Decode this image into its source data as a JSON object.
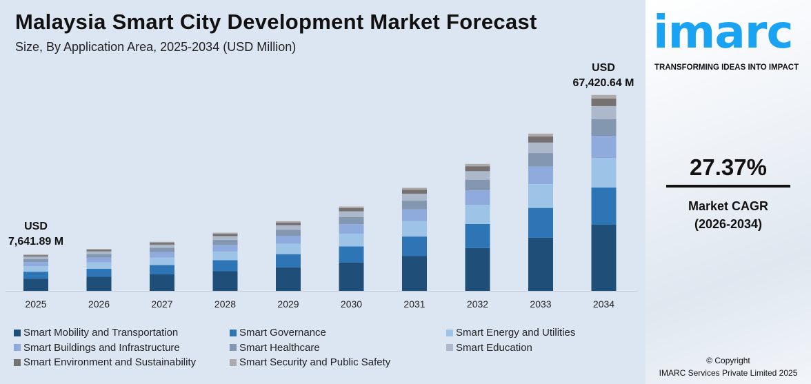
{
  "header": {
    "title": "Malaysia Smart City Development Market Forecast",
    "subtitle": "Size, By Application Area, 2025-2034 (USD Million)"
  },
  "chart_data": {
    "type": "bar",
    "stacked": true,
    "title": "Malaysia Smart City Development Market Forecast",
    "subtitle": "Size, By Application Area, 2025-2034 (USD Million)",
    "categories": [
      "2025",
      "2026",
      "2027",
      "2028",
      "2029",
      "2030",
      "2031",
      "2032",
      "2033",
      "2034"
    ],
    "totals": [
      7641.89,
      9733,
      12398,
      15792,
      20115,
      25621,
      32634,
      41567,
      52945,
      67420.64
    ],
    "series": [
      {
        "name": "Smart Mobility and Transportation",
        "color": "#1f4e79",
        "share": 0.338
      },
      {
        "name": "Smart Governance",
        "color": "#2e75b6",
        "share": 0.19
      },
      {
        "name": "Smart Energy and Utilities",
        "color": "#9dc3e6",
        "share": 0.151
      },
      {
        "name": "Smart Buildings and Infrastructure",
        "color": "#8faadc",
        "share": 0.113
      },
      {
        "name": "Smart Healthcare",
        "color": "#8497b0",
        "share": 0.085
      },
      {
        "name": "Smart Education",
        "color": "#adb9ca",
        "share": 0.067
      },
      {
        "name": "Smart Environment and Sustainability",
        "color": "#767171",
        "share": 0.039
      },
      {
        "name": "Smart Security and Public Safety",
        "color": "#aeaaaa",
        "share": 0.018
      }
    ],
    "annotations": {
      "first": {
        "line1": "USD",
        "line2": "7,641.89 M"
      },
      "last": {
        "line1": "USD",
        "line2": "67,420.64 M"
      }
    },
    "legend_placement": "bottom",
    "grid": false
  },
  "side": {
    "logo": "imarc",
    "tagline": "TRANSFORMING IDEAS INTO IMPACT",
    "cagr": "27.37%",
    "cagr_label": "Market CAGR",
    "cagr_period": "(2026-2034)",
    "copyright": "© Copyright",
    "company": "IMARC Services Private Limited 2025"
  },
  "colors": {
    "brand": "#1aa3f2",
    "background": "#dce5f2"
  }
}
